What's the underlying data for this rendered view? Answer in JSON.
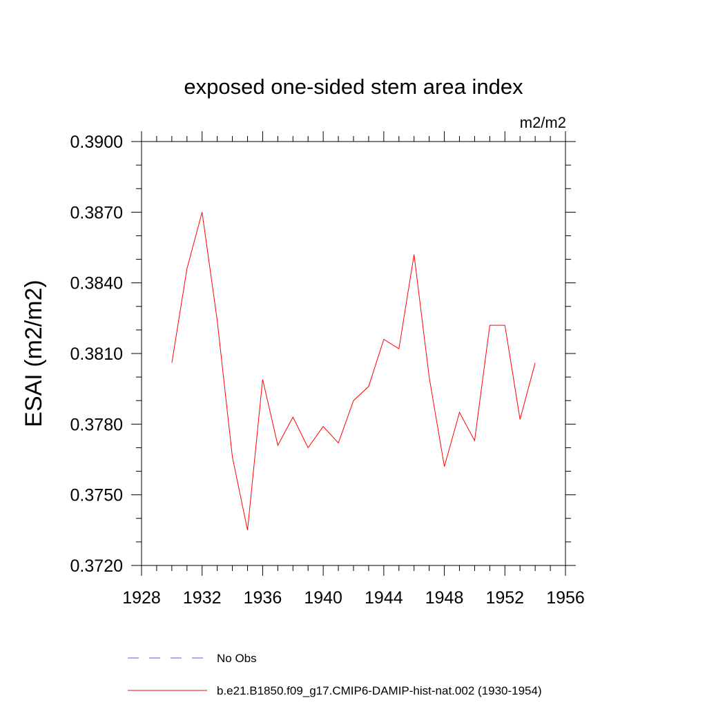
{
  "chart_data": {
    "type": "line",
    "title": "exposed one-sided stem area index",
    "units": "m2/m2",
    "xlabel": "",
    "ylabel": "ESAI  (m2/m2)",
    "xlim": [
      1928,
      1956
    ],
    "ylim": [
      0.372,
      0.39
    ],
    "x_ticks": [
      1928,
      1932,
      1936,
      1940,
      1944,
      1948,
      1952,
      1956
    ],
    "x_tick_labels": [
      "1928",
      "1932",
      "1936",
      "1940",
      "1944",
      "1948",
      "1952",
      "1956"
    ],
    "y_ticks": [
      0.372,
      0.375,
      0.378,
      0.381,
      0.384,
      0.387,
      0.39
    ],
    "y_tick_labels": [
      "0.3720",
      "0.3750",
      "0.3780",
      "0.3810",
      "0.3840",
      "0.3870",
      "0.3900"
    ],
    "grid": false,
    "legend_placement": "bottom",
    "series": [
      {
        "name": "No Obs",
        "color": "#6a5acd",
        "style": "dashed",
        "x": [],
        "y": []
      },
      {
        "name": "b.e21.B1850.f09_g17.CMIP6-DAMIP-hist-nat.002 (1930-1954)",
        "color": "#ff0000",
        "style": "solid",
        "x": [
          1930,
          1931,
          1932,
          1933,
          1934,
          1935,
          1936,
          1937,
          1938,
          1939,
          1940,
          1941,
          1942,
          1943,
          1944,
          1945,
          1946,
          1947,
          1948,
          1949,
          1950,
          1951,
          1952,
          1953,
          1954
        ],
        "y": [
          0.3806,
          0.3846,
          0.387,
          0.3824,
          0.3766,
          0.3735,
          0.3799,
          0.3771,
          0.3783,
          0.377,
          0.3779,
          0.3772,
          0.379,
          0.3796,
          0.3816,
          0.3812,
          0.3852,
          0.38,
          0.3762,
          0.3785,
          0.3773,
          0.3822,
          0.3822,
          0.3782,
          0.3806
        ]
      }
    ]
  }
}
